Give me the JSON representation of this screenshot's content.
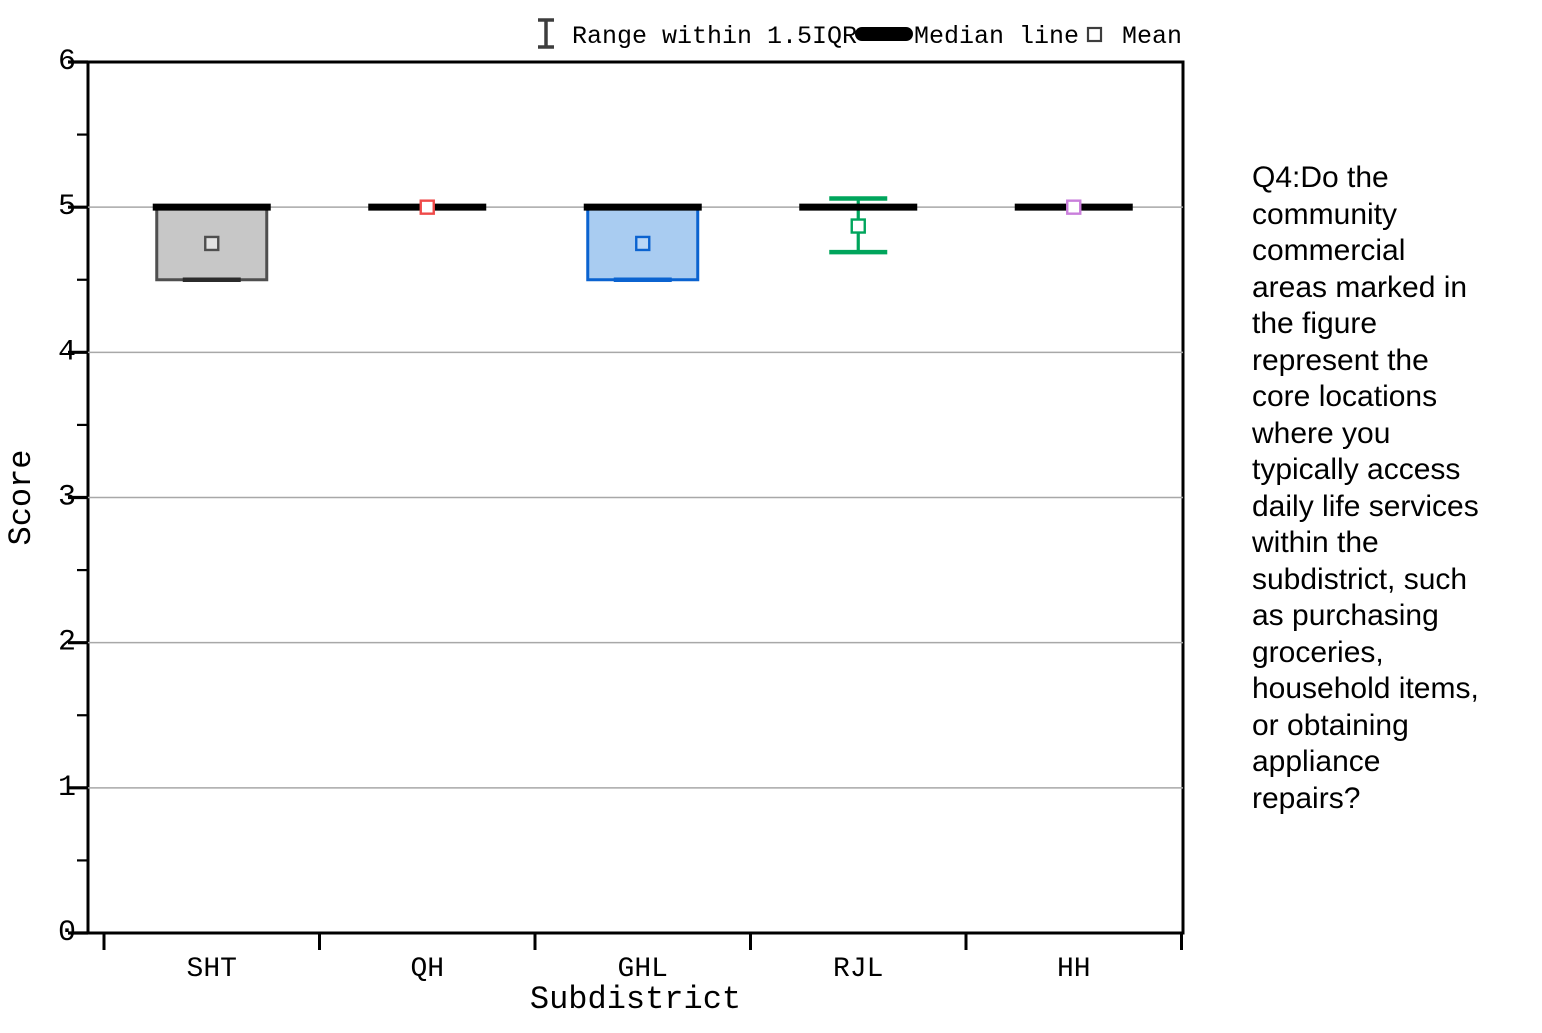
{
  "figure": {
    "question_text_lines": [
      "Q4:Do the",
      "community",
      "commercial",
      "areas marked in",
      "the figure",
      "represent the",
      "core locations",
      "where you",
      "typically access",
      "daily life services",
      "within the",
      "subdistrict, such",
      "as purchasing",
      "groceries,",
      "household items,",
      "or obtaining",
      "appliance",
      "repairs?"
    ]
  },
  "chart_data": {
    "type": "box",
    "title": "",
    "xlabel": "Subdistrict",
    "ylabel": "Score",
    "ylim": [
      0,
      6
    ],
    "yticks": [
      0,
      1,
      2,
      3,
      4,
      5,
      6
    ],
    "minor_ytick_step": 0.5,
    "gridlines": [
      1,
      2,
      3,
      4,
      5
    ],
    "grid": true,
    "legend_position": "top",
    "legend": [
      {
        "icon": "errorbar-icon",
        "label": "Range within 1.5IQR"
      },
      {
        "icon": "median-line-icon",
        "label": "Median line"
      },
      {
        "icon": "mean-square-icon",
        "label": "Mean"
      }
    ],
    "categories": [
      "SHT",
      "QH",
      "GHL",
      "RJL",
      "HH"
    ],
    "series": [
      {
        "category": "SHT",
        "q1": 4.5,
        "median": 5.0,
        "q3": 5.0,
        "whisker_low": 4.5,
        "whisker_high": 5.0,
        "mean": 4.75,
        "box_fill": "#c7c7c7",
        "edge_color": "#4f4f4f",
        "cap_color": "#2b2b2b",
        "mean_edge": "#4f4f4f",
        "mean_fill": "#e3e3e3"
      },
      {
        "category": "QH",
        "q1": 5.0,
        "median": 5.0,
        "q3": 5.0,
        "whisker_low": 5.0,
        "whisker_high": 5.0,
        "mean": 5.0,
        "box_fill": "none",
        "edge_color": "#000000",
        "cap_color": "#000000",
        "mean_edge": "#ef4a49",
        "mean_fill": "#ffffff"
      },
      {
        "category": "GHL",
        "q1": 4.5,
        "median": 5.0,
        "q3": 5.0,
        "whisker_low": 4.5,
        "whisker_high": 5.0,
        "mean": 4.75,
        "box_fill": "#a9ccf1",
        "edge_color": "#0b63d0",
        "cap_color": "#0b63d0",
        "mean_edge": "#0b63d0",
        "mean_fill": "#b9d6f6"
      },
      {
        "category": "RJL",
        "q1": 5.0,
        "median": 5.0,
        "q3": 5.0,
        "whisker_low": 4.69,
        "whisker_high": 5.06,
        "mean": 4.87,
        "box_fill": "none",
        "edge_color": "#00a55c",
        "cap_color": "#00a55c",
        "mean_edge": "#00a55c",
        "mean_fill": "#ffffff"
      },
      {
        "category": "HH",
        "q1": 5.0,
        "median": 5.0,
        "q3": 5.0,
        "whisker_low": 5.0,
        "whisker_high": 5.0,
        "mean": 5.0,
        "box_fill": "none",
        "edge_color": "#000000",
        "cap_color": "#000000",
        "mean_edge": "#c97edb",
        "mean_fill": "#ffffff"
      }
    ],
    "median_color": "#000000",
    "colors": {
      "axis": "#000000",
      "grid": "#a8a8a8",
      "background": "#ffffff"
    }
  }
}
